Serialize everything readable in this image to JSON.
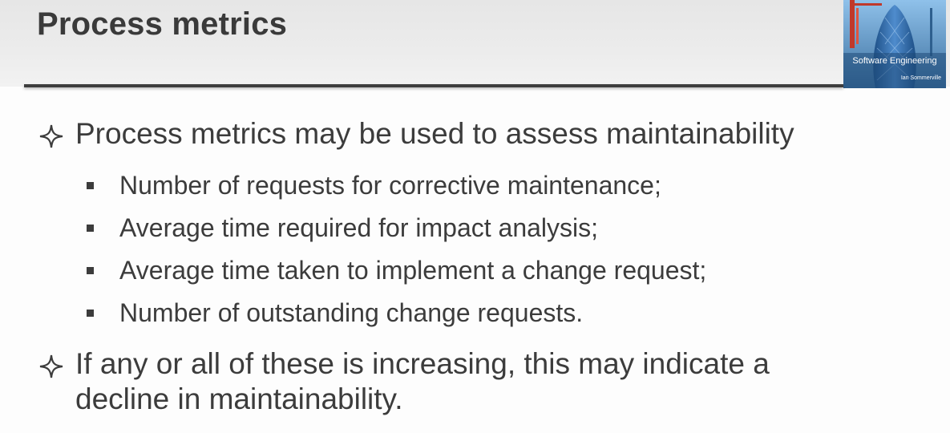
{
  "slide": {
    "title": "Process metrics",
    "cover": {
      "title": "Software Engineering",
      "author": "Ian Sommerville"
    },
    "bullets": [
      {
        "text": "Process metrics may be used to assess maintainability",
        "sub": [
          "Number of requests for corrective maintenance;",
          "Average time required for impact analysis;",
          "Average time taken to implement a change request;",
          "Number of outstanding change requests."
        ]
      },
      {
        "lines": [
          "If any or all of these is increasing, this may indicate a",
          "decline in maintainability."
        ]
      }
    ]
  }
}
